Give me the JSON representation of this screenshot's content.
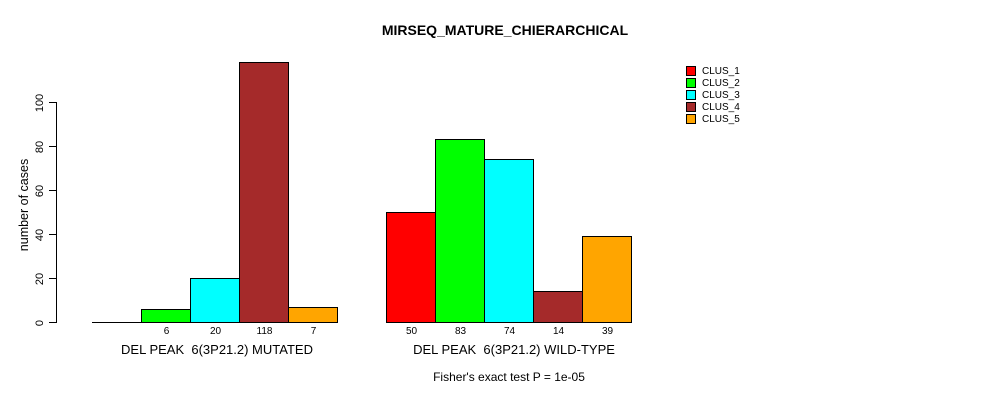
{
  "title": "MIRSEQ_MATURE_CHIERARCHICAL",
  "annotation": "Fisher's exact test P = 1e-05",
  "chart_data": {
    "type": "bar",
    "title": "MIRSEQ_MATURE_CHIERARCHICAL",
    "ylabel": "number of cases",
    "xlabel": "",
    "ylim": [
      0,
      100
    ],
    "yticks": [
      0,
      20,
      40,
      60,
      80,
      100
    ],
    "grid": false,
    "legend_position": "top-right",
    "categories": [
      "DEL PEAK  6(3P21.2) MUTATED",
      "DEL PEAK  6(3P21.2) WILD-TYPE"
    ],
    "series": [
      {
        "name": "CLUS_1",
        "color": "#FF0000",
        "values": [
          0,
          50
        ]
      },
      {
        "name": "CLUS_2",
        "color": "#00FF00",
        "values": [
          6,
          83
        ]
      },
      {
        "name": "CLUS_3",
        "color": "#00FFFF",
        "values": [
          20,
          74
        ]
      },
      {
        "name": "CLUS_4",
        "color": "#A52A2A",
        "values": [
          118,
          14
        ]
      },
      {
        "name": "CLUS_5",
        "color": "#FFA500",
        "values": [
          7,
          39
        ]
      }
    ],
    "bar_value_labels": "values printed under each bar; zero-height bars are unlabeled",
    "annotation": "Fisher's exact test P = 1e-05"
  }
}
